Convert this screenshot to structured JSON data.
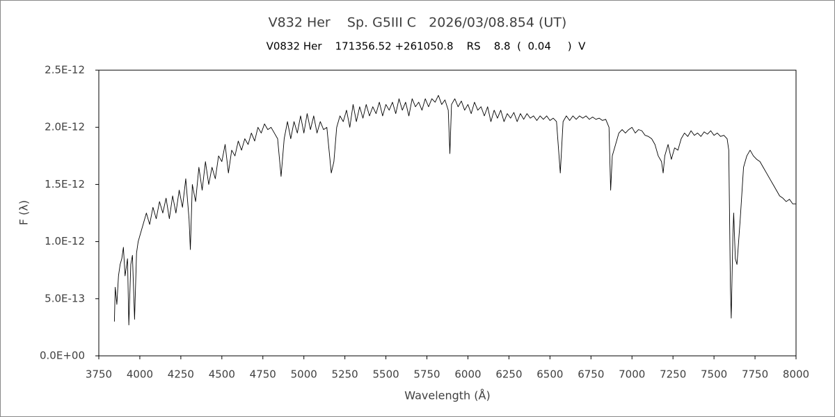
{
  "chart_data": {
    "type": "line",
    "title": "V832 Her    Sp. G5III C   2026/03/08.854 (UT)",
    "subtitle": "V0832 Her    171356.52 +261050.8    RS    8.8  (  0.04     )  V",
    "x_label": "Wavelength (Å)",
    "y_label": "F (λ)",
    "color": "#000000",
    "grid": false,
    "xlim": [
      3750,
      8000
    ],
    "xticks": [
      3750,
      4000,
      4250,
      4500,
      4750,
      5000,
      5250,
      5500,
      5750,
      6000,
      6250,
      6500,
      6750,
      7000,
      7250,
      7500,
      7750,
      8000
    ],
    "ylim": [
      0,
      2.5e-12
    ],
    "yticks": [
      {
        "value": 0,
        "label": "0.0E+00"
      },
      {
        "value": 5e-13,
        "label": "5.0E-13"
      },
      {
        "value": 1e-12,
        "label": "1.0E-12"
      },
      {
        "value": 1.5e-12,
        "label": "1.5E-12"
      },
      {
        "value": 2e-12,
        "label": "2.0E-12"
      },
      {
        "value": 2.5e-12,
        "label": "2.5E-12"
      }
    ],
    "x": [
      3845,
      3850,
      3860,
      3870,
      3880,
      3890,
      3900,
      3910,
      3925,
      3933,
      3945,
      3955,
      3968,
      3980,
      3990,
      4000,
      4020,
      4040,
      4060,
      4080,
      4100,
      4120,
      4140,
      4160,
      4180,
      4200,
      4220,
      4240,
      4260,
      4280,
      4300,
      4308,
      4320,
      4340,
      4360,
      4380,
      4400,
      4420,
      4440,
      4460,
      4480,
      4500,
      4520,
      4540,
      4560,
      4580,
      4600,
      4620,
      4640,
      4660,
      4680,
      4700,
      4720,
      4740,
      4760,
      4780,
      4800,
      4820,
      4840,
      4861,
      4880,
      4900,
      4920,
      4940,
      4960,
      4980,
      5000,
      5020,
      5040,
      5060,
      5080,
      5100,
      5120,
      5140,
      5167,
      5183,
      5200,
      5220,
      5240,
      5260,
      5280,
      5300,
      5320,
      5340,
      5360,
      5380,
      5400,
      5420,
      5440,
      5460,
      5480,
      5500,
      5520,
      5540,
      5560,
      5580,
      5600,
      5620,
      5640,
      5660,
      5680,
      5700,
      5720,
      5740,
      5760,
      5780,
      5800,
      5820,
      5840,
      5860,
      5880,
      5890,
      5900,
      5920,
      5940,
      5960,
      5980,
      6000,
      6020,
      6040,
      6060,
      6080,
      6100,
      6120,
      6140,
      6160,
      6180,
      6200,
      6220,
      6240,
      6260,
      6280,
      6300,
      6320,
      6340,
      6360,
      6380,
      6400,
      6420,
      6440,
      6460,
      6480,
      6500,
      6520,
      6540,
      6563,
      6580,
      6600,
      6620,
      6640,
      6660,
      6680,
      6700,
      6720,
      6740,
      6760,
      6780,
      6800,
      6820,
      6840,
      6860,
      6870,
      6880,
      6900,
      6920,
      6940,
      6960,
      6980,
      7000,
      7020,
      7040,
      7060,
      7080,
      7100,
      7120,
      7140,
      7160,
      7180,
      7190,
      7200,
      7220,
      7240,
      7260,
      7280,
      7300,
      7320,
      7340,
      7360,
      7380,
      7400,
      7420,
      7440,
      7460,
      7480,
      7500,
      7520,
      7540,
      7560,
      7580,
      7590,
      7600,
      7605,
      7615,
      7620,
      7630,
      7640,
      7660,
      7680,
      7700,
      7720,
      7740,
      7760,
      7780,
      7800,
      7820,
      7840,
      7860,
      7880,
      7900,
      7920,
      7940,
      7960,
      7980,
      8000
    ],
    "values": [
      3e-13,
      6e-13,
      4.5e-13,
      7e-13,
      8e-13,
      8.5e-13,
      9.5e-13,
      7e-13,
      8.5e-13,
      2.7e-13,
      8e-13,
      8.8e-13,
      3.2e-13,
      9e-13,
      1e-12,
      1.05e-12,
      1.15e-12,
      1.25e-12,
      1.15e-12,
      1.3e-12,
      1.2e-12,
      1.35e-12,
      1.25e-12,
      1.38e-12,
      1.2e-12,
      1.4e-12,
      1.25e-12,
      1.45e-12,
      1.3e-12,
      1.55e-12,
      1.2e-12,
      9.3e-13,
      1.5e-12,
      1.35e-12,
      1.65e-12,
      1.45e-12,
      1.7e-12,
      1.5e-12,
      1.65e-12,
      1.55e-12,
      1.75e-12,
      1.7e-12,
      1.85e-12,
      1.6e-12,
      1.8e-12,
      1.75e-12,
      1.88e-12,
      1.8e-12,
      1.9e-12,
      1.85e-12,
      1.95e-12,
      1.88e-12,
      2e-12,
      1.95e-12,
      2.03e-12,
      1.98e-12,
      2e-12,
      1.95e-12,
      1.9e-12,
      1.57e-12,
      1.9e-12,
      2.05e-12,
      1.9e-12,
      2.05e-12,
      1.95e-12,
      2.1e-12,
      1.95e-12,
      2.12e-12,
      1.98e-12,
      2.1e-12,
      1.95e-12,
      2.05e-12,
      1.98e-12,
      2e-12,
      1.6e-12,
      1.7e-12,
      2e-12,
      2.1e-12,
      2.05e-12,
      2.15e-12,
      2e-12,
      2.2e-12,
      2.05e-12,
      2.18e-12,
      2.08e-12,
      2.2e-12,
      2.1e-12,
      2.18e-12,
      2.12e-12,
      2.22e-12,
      2.1e-12,
      2.2e-12,
      2.15e-12,
      2.22e-12,
      2.12e-12,
      2.25e-12,
      2.15e-12,
      2.22e-12,
      2.1e-12,
      2.25e-12,
      2.18e-12,
      2.22e-12,
      2.15e-12,
      2.25e-12,
      2.18e-12,
      2.25e-12,
      2.22e-12,
      2.28e-12,
      2.2e-12,
      2.24e-12,
      2.15e-12,
      1.77e-12,
      2.2e-12,
      2.25e-12,
      2.18e-12,
      2.23e-12,
      2.15e-12,
      2.2e-12,
      2.12e-12,
      2.22e-12,
      2.15e-12,
      2.18e-12,
      2.1e-12,
      2.18e-12,
      2.05e-12,
      2.15e-12,
      2.08e-12,
      2.15e-12,
      2.05e-12,
      2.12e-12,
      2.08e-12,
      2.13e-12,
      2.05e-12,
      2.12e-12,
      2.07e-12,
      2.12e-12,
      2.08e-12,
      2.1e-12,
      2.06e-12,
      2.1e-12,
      2.07e-12,
      2.1e-12,
      2.06e-12,
      2.08e-12,
      2.05e-12,
      1.6e-12,
      2.05e-12,
      2.1e-12,
      2.06e-12,
      2.1e-12,
      2.07e-12,
      2.1e-12,
      2.08e-12,
      2.1e-12,
      2.07e-12,
      2.09e-12,
      2.07e-12,
      2.08e-12,
      2.06e-12,
      2.07e-12,
      2e-12,
      1.45e-12,
      1.75e-12,
      1.85e-12,
      1.95e-12,
      1.98e-12,
      1.95e-12,
      1.98e-12,
      2e-12,
      1.95e-12,
      1.98e-12,
      1.97e-12,
      1.93e-12,
      1.92e-12,
      1.9e-12,
      1.85e-12,
      1.75e-12,
      1.7e-12,
      1.6e-12,
      1.75e-12,
      1.85e-12,
      1.72e-12,
      1.82e-12,
      1.8e-12,
      1.9e-12,
      1.95e-12,
      1.92e-12,
      1.97e-12,
      1.93e-12,
      1.95e-12,
      1.92e-12,
      1.96e-12,
      1.94e-12,
      1.97e-12,
      1.93e-12,
      1.95e-12,
      1.92e-12,
      1.93e-12,
      1.9e-12,
      1.8e-12,
      6e-13,
      3.3e-13,
      1.05e-12,
      1.25e-12,
      8.5e-13,
      8e-13,
      1.2e-12,
      1.65e-12,
      1.75e-12,
      1.8e-12,
      1.75e-12,
      1.72e-12,
      1.7e-12,
      1.65e-12,
      1.6e-12,
      1.55e-12,
      1.5e-12,
      1.45e-12,
      1.4e-12,
      1.38e-12,
      1.35e-12,
      1.37e-12,
      1.33e-12,
      1.33e-12
    ]
  }
}
